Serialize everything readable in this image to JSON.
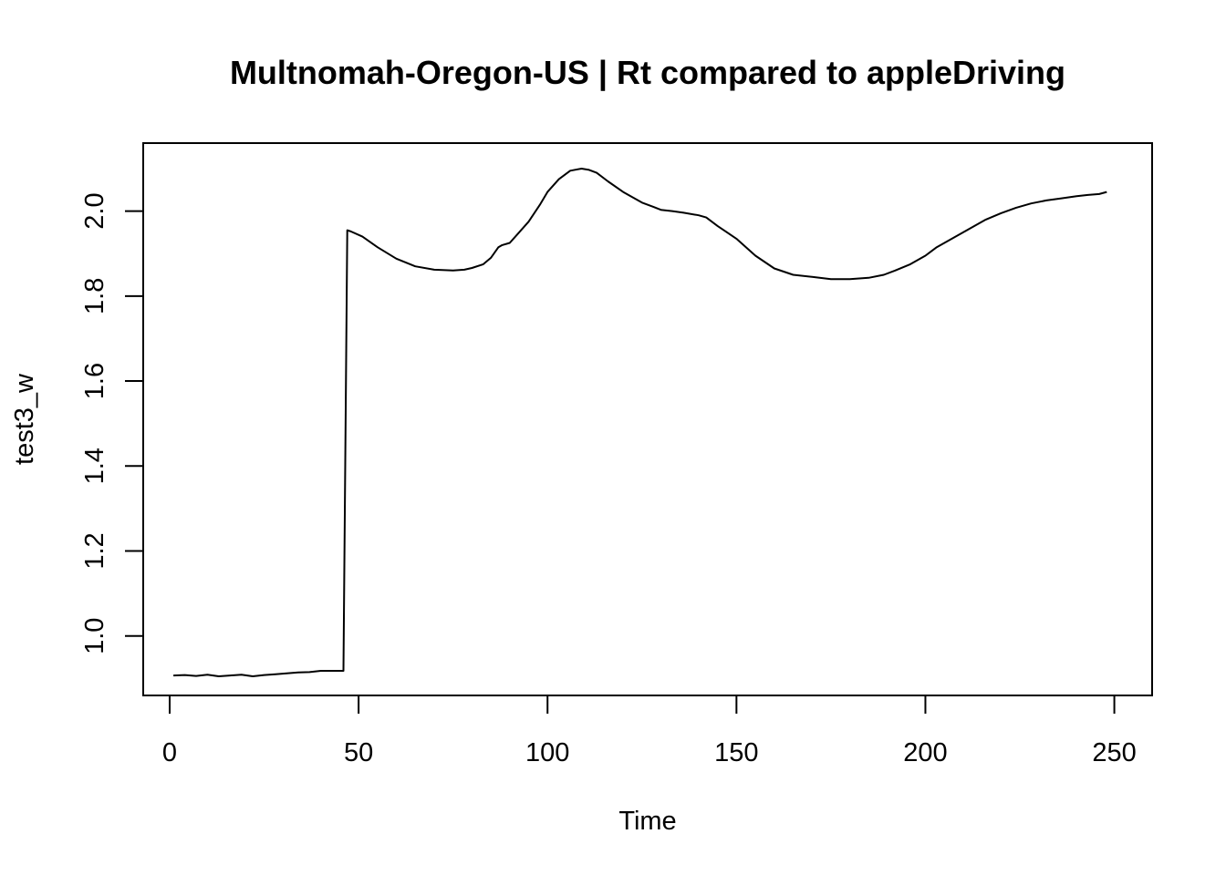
{
  "chart_data": {
    "type": "line",
    "title": "Multnomah-Oregon-US | Rt compared to appleDriving",
    "xlabel": "Time",
    "ylabel": "test3_w",
    "xlim": [
      -7,
      260
    ],
    "ylim": [
      0.86,
      2.16
    ],
    "x_ticks": [
      0,
      50,
      100,
      150,
      200,
      250
    ],
    "y_ticks": [
      1.0,
      1.2,
      1.4,
      1.6,
      1.8,
      2.0
    ],
    "x_tick_labels": [
      "0",
      "50",
      "100",
      "150",
      "200",
      "250"
    ],
    "y_tick_labels": [
      "1.0",
      "1.2",
      "1.4",
      "1.6",
      "1.8",
      "2.0"
    ],
    "grid": false,
    "line_color": "#000000",
    "series": [
      {
        "x": [
          1,
          4,
          7,
          10,
          13,
          16,
          19,
          22,
          25,
          28,
          31,
          34,
          37,
          40,
          43,
          46,
          47,
          48,
          51,
          55,
          60,
          65,
          70,
          75,
          78,
          80,
          83,
          85,
          87,
          88,
          90,
          92,
          95,
          98,
          100,
          103,
          106,
          109,
          111,
          113,
          116,
          120,
          125,
          128,
          130,
          133,
          136,
          140,
          142,
          145,
          150,
          155,
          160,
          165,
          170,
          175,
          180,
          185,
          189,
          192,
          196,
          200,
          203,
          206,
          210,
          213,
          216,
          220,
          224,
          228,
          232,
          236,
          240,
          243,
          246,
          248
        ],
        "y": [
          0.907,
          0.908,
          0.906,
          0.909,
          0.905,
          0.907,
          0.909,
          0.905,
          0.908,
          0.91,
          0.912,
          0.914,
          0.915,
          0.918,
          0.918,
          0.918,
          1.955,
          1.952,
          1.94,
          1.915,
          1.888,
          1.87,
          1.862,
          1.86,
          1.862,
          1.866,
          1.875,
          1.89,
          1.915,
          1.92,
          1.925,
          1.945,
          1.975,
          2.015,
          2.045,
          2.075,
          2.095,
          2.1,
          2.097,
          2.09,
          2.07,
          2.045,
          2.02,
          2.01,
          2.003,
          2.0,
          1.996,
          1.99,
          1.985,
          1.965,
          1.935,
          1.895,
          1.865,
          1.85,
          1.845,
          1.84,
          1.84,
          1.843,
          1.85,
          1.86,
          1.875,
          1.895,
          1.915,
          1.93,
          1.95,
          1.965,
          1.98,
          1.995,
          2.008,
          2.018,
          2.025,
          2.03,
          2.035,
          2.038,
          2.04,
          2.045
        ]
      }
    ]
  }
}
